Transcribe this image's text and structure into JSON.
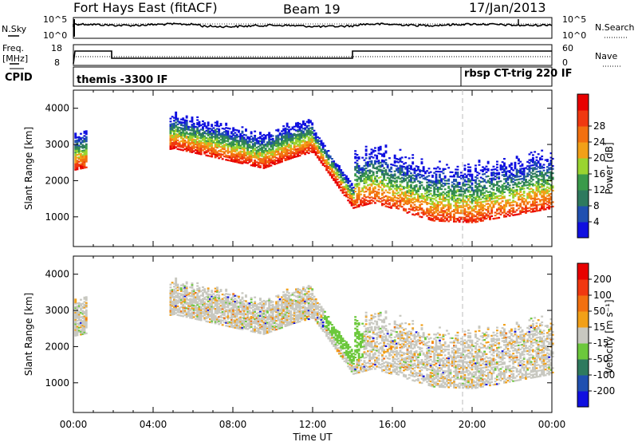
{
  "header": {
    "station": "Fort Hays East (fitACF)",
    "beam": "Beam 19",
    "date": "17/Jan/2013"
  },
  "noise_panel": {
    "left_label": "N.Sky",
    "left_ticks": [
      "10^5",
      "10^0"
    ],
    "right_label": "N.Search",
    "right_ticks": [
      "10^5",
      "10^0"
    ]
  },
  "freq_panel": {
    "left_label_1": "Freq.",
    "left_label_2": "[MHz]",
    "left_ticks": [
      "18",
      "8"
    ],
    "right_label": "Nave",
    "right_ticks": [
      "60",
      "0"
    ]
  },
  "cpid_panel": {
    "label": "CPID",
    "mode_1": "themis -3300 IF",
    "mode_2": "rbsp CT-trig 220 IF"
  },
  "colors": {
    "power_scale": [
      "#1010e0",
      "#2050b0",
      "#2e7a5e",
      "#3a9a4a",
      "#9ad430",
      "#f2a018",
      "#f27010",
      "#f03810",
      "#e80000"
    ],
    "velocity_scale": [
      "#1010e0",
      "#2050b0",
      "#2e7a5e",
      "#6cc83c",
      "#c8c8c0",
      "#f2a018",
      "#f27010",
      "#f03810",
      "#e80000"
    ]
  },
  "chart_data": [
    {
      "type": "heatmap",
      "quantity": "Power",
      "xlabel": "",
      "ylabel": "Slant Range [km]",
      "x_ticks": [
        "00:00",
        "04:00",
        "08:00",
        "12:00",
        "16:00",
        "20:00",
        "00:00"
      ],
      "xlim_hours": [
        0,
        24
      ],
      "ylim_km": [
        180,
        4500
      ],
      "y_ticks": [
        1000,
        2000,
        3000,
        4000
      ],
      "colorbar": {
        "label": "Power [dB]",
        "ticks": [
          4,
          8,
          12,
          16,
          20,
          24,
          28
        ],
        "range": [
          0,
          30
        ]
      },
      "echo_band_center_km": [
        {
          "t": 0.0,
          "r": 2400
        },
        {
          "t": 5.0,
          "r": 3000
        },
        {
          "t": 9.5,
          "r": 2450
        },
        {
          "t": 11.0,
          "r": 2750
        },
        {
          "t": 12.0,
          "r": 2900
        },
        {
          "t": 14.0,
          "r": 1350
        },
        {
          "t": 15.0,
          "r": 1500
        },
        {
          "t": 18.0,
          "r": 1000
        },
        {
          "t": 20.0,
          "r": 950
        },
        {
          "t": 24.0,
          "r": 1350
        }
      ]
    },
    {
      "type": "heatmap",
      "quantity": "Velocity",
      "xlabel": "Time UT",
      "ylabel": "Slant Range [km]",
      "x_ticks": [
        "00:00",
        "04:00",
        "08:00",
        "12:00",
        "16:00",
        "20:00",
        "00:00"
      ],
      "xlim_hours": [
        0,
        24
      ],
      "ylim_km": [
        180,
        4500
      ],
      "y_ticks": [
        1000,
        2000,
        3000,
        4000
      ],
      "colorbar": {
        "label": "Velocity [m s⁻¹]",
        "ticks": [
          200,
          100,
          50,
          15,
          -15,
          -50,
          -100,
          -200
        ],
        "range": [
          -250,
          250
        ]
      }
    }
  ]
}
